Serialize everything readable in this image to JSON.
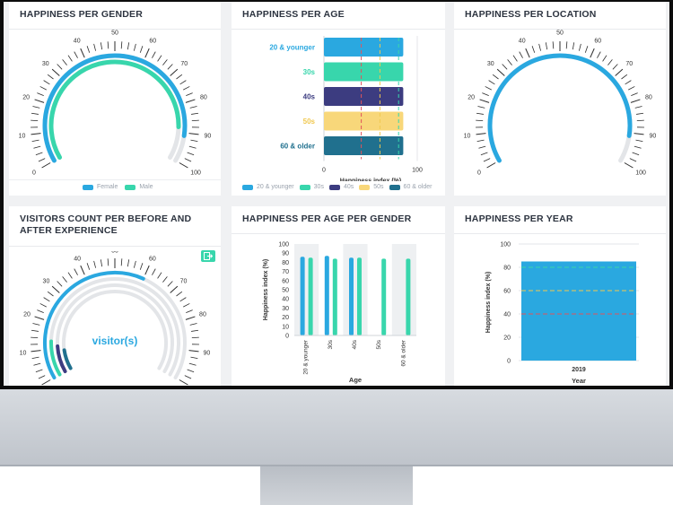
{
  "colors": {
    "blue": "#2aa8e0",
    "teal": "#38d6ac",
    "navy": "#3c3c80",
    "yellow": "#f8d77a",
    "steel": "#20708e",
    "track": "#e3e5e8",
    "ref_red": "#e0545c",
    "ref_yellow": "#f0c850",
    "ref_teal": "#38d6ac",
    "title": "#2d3440"
  },
  "gauge_ticks": [
    "0",
    "10",
    "20",
    "30",
    "40",
    "50",
    "60",
    "70",
    "80",
    "90",
    "100"
  ],
  "cards": {
    "gender": {
      "title": "HAPPINESS PER GENDER",
      "legend": [
        {
          "label": "Female",
          "color": "#2aa8e0"
        },
        {
          "label": "Male",
          "color": "#38d6ac"
        }
      ]
    },
    "age": {
      "title": "HAPPINESS PER AGE",
      "legend": [
        {
          "label": "20 & younger",
          "color": "#2aa8e0"
        },
        {
          "label": "30s",
          "color": "#38d6ac"
        },
        {
          "label": "40s",
          "color": "#3c3c80"
        },
        {
          "label": "50s",
          "color": "#f8d77a"
        },
        {
          "label": "60 & older",
          "color": "#20708e"
        }
      ]
    },
    "location": {
      "title": "HAPPINESS PER LOCATION"
    },
    "visitors": {
      "title": "VISITORS COUNT PER BEFORE AND AFTER EXPERIENCE",
      "center_label": "visitor(s)"
    },
    "age_gender": {
      "title": "HAPPINESS PER AGE PER GENDER"
    },
    "year": {
      "title": "HAPPINESS PER YEAR"
    }
  },
  "chart_data": [
    {
      "type": "gauge",
      "title": "HAPPINESS PER GENDER",
      "range": [
        0,
        100
      ],
      "series": [
        {
          "name": "Female",
          "value": 91
        },
        {
          "name": "Male",
          "value": 88
        }
      ]
    },
    {
      "type": "bar",
      "orientation": "horizontal",
      "title": "HAPPINESS PER AGE",
      "categories": [
        "20 & younger",
        "30s",
        "40s",
        "50s",
        "60 & older"
      ],
      "values": [
        85,
        85,
        85,
        85,
        85
      ],
      "xlabel": "Happiness index (%)",
      "xlim": [
        0,
        100
      ],
      "xticks": [
        "0",
        "100"
      ],
      "reference_lines": [
        40,
        60,
        80
      ]
    },
    {
      "type": "gauge",
      "title": "HAPPINESS PER LOCATION",
      "range": [
        0,
        100
      ],
      "series": [
        {
          "name": "",
          "value": 91
        }
      ]
    },
    {
      "type": "gauge",
      "title": "VISITORS COUNT PER BEFORE AND AFTER EXPERIENCE",
      "range": [
        0,
        100
      ],
      "series": [
        {
          "name": "",
          "value": 60
        },
        {
          "name": "",
          "value": 13
        },
        {
          "name": "",
          "value": 11
        },
        {
          "name": "",
          "value": 9
        }
      ]
    },
    {
      "type": "bar",
      "title": "HAPPINESS PER AGE PER GENDER",
      "categories": [
        "20 & younger",
        "30s",
        "40s",
        "50s",
        "60 & older"
      ],
      "series": [
        {
          "name": "Female",
          "values": [
            86,
            87,
            85,
            null,
            null
          ]
        },
        {
          "name": "Male",
          "values": [
            85,
            84,
            85,
            84,
            84
          ]
        }
      ],
      "xlabel": "Age",
      "ylabel": "Happiness index (%)",
      "ylim": [
        0,
        100
      ],
      "yticks": [
        "0",
        "10",
        "20",
        "30",
        "40",
        "50",
        "60",
        "70",
        "80",
        "90",
        "100"
      ]
    },
    {
      "type": "bar",
      "title": "HAPPINESS PER YEAR",
      "categories": [
        "2019"
      ],
      "values": [
        85
      ],
      "xlabel": "Year",
      "ylabel": "Happiness index (%)",
      "ylim": [
        0,
        100
      ],
      "yticks": [
        "0",
        "20",
        "40",
        "60",
        "80",
        "100"
      ],
      "reference_lines": [
        40,
        60,
        80
      ]
    }
  ]
}
